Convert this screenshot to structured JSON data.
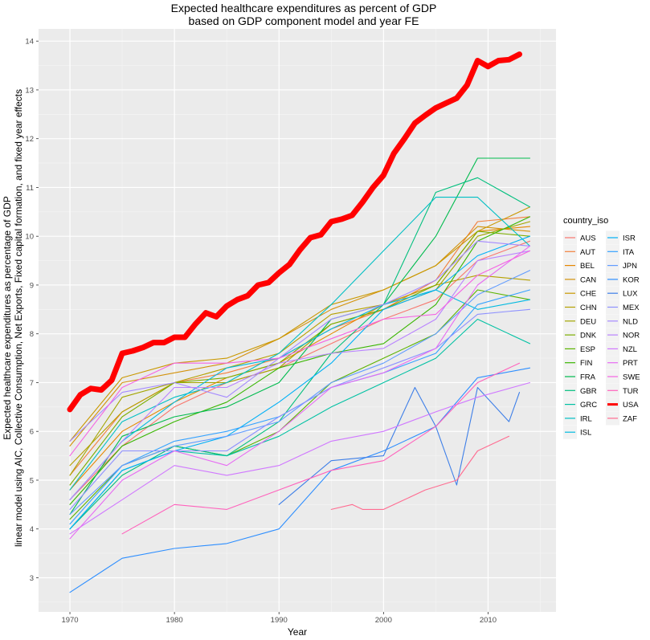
{
  "chart_data": {
    "type": "line",
    "title": [
      "Expected healthcare expenditures as percent of GDP",
      "based on GDP component model and year FE"
    ],
    "xlabel": "Year",
    "ylabel": "linear model using AIC, Collective Consumption, Net Exports, Fixed capital formation, and fixed year effects",
    "ylabel2": "Expected healthcare expenditures as percentage of GDP",
    "xlim": [
      1967,
      2016.5
    ],
    "ylim": [
      2.3,
      14.25
    ],
    "xticks": [
      1970,
      1980,
      1990,
      2000,
      2010
    ],
    "yticks": [
      3,
      4,
      5,
      6,
      7,
      8,
      9,
      10,
      11,
      12,
      13,
      14
    ],
    "legend_title": "country_iso",
    "legend_position": "right",
    "grid": true,
    "series": [
      {
        "name": "AUS",
        "color": "#F8766D",
        "x": [
          1970,
          1975,
          1980,
          1985,
          1990,
          1995,
          2000,
          2005,
          2009,
          2014
        ],
        "values": [
          4.6,
          5.7,
          6.5,
          7.0,
          7.3,
          7.8,
          8.3,
          8.7,
          9.5,
          9.9
        ]
      },
      {
        "name": "AUT",
        "color": "#F2803C",
        "x": [
          1970,
          1975,
          1980,
          1985,
          1990,
          1995,
          2000,
          2005,
          2009,
          2014
        ],
        "values": [
          5.1,
          6.4,
          7.0,
          7.2,
          7.5,
          8.1,
          8.5,
          9.1,
          10.3,
          10.4
        ]
      },
      {
        "name": "BEL",
        "color": "#E58700",
        "x": [
          1970,
          1975,
          1980,
          1985,
          1990,
          1995,
          2000,
          2005,
          2009,
          2014
        ],
        "values": [
          4.8,
          6.0,
          6.6,
          7.1,
          7.4,
          8.0,
          8.6,
          9.0,
          10.1,
          10.2
        ]
      },
      {
        "name": "CAN",
        "color": "#D3920B",
        "x": [
          1970,
          1975,
          1980,
          1985,
          1990,
          1995,
          2000,
          2005,
          2009,
          2014
        ],
        "values": [
          5.7,
          7.0,
          7.2,
          7.4,
          7.9,
          8.5,
          8.9,
          9.4,
          10.2,
          10.1
        ]
      },
      {
        "name": "CHE",
        "color": "#C99800",
        "x": [
          1970,
          1975,
          1980,
          1985,
          1990,
          1995,
          2000,
          2005,
          2009,
          2014
        ],
        "values": [
          5.8,
          7.1,
          7.4,
          7.5,
          7.9,
          8.6,
          8.9,
          9.4,
          10.1,
          10.6
        ]
      },
      {
        "name": "CHN",
        "color": "#B5A000",
        "x": [
          1970,
          1975,
          1980,
          1985,
          1990,
          1995,
          2000,
          2005,
          2009,
          2014
        ],
        "values": [
          5.3,
          6.4,
          7.0,
          7.3,
          7.6,
          8.4,
          8.6,
          9.0,
          9.2,
          9.1
        ]
      },
      {
        "name": "DEU",
        "color": "#A3A500",
        "x": [
          1970,
          1975,
          1980,
          1985,
          1990,
          1995,
          2000,
          2005,
          2009,
          2014
        ],
        "values": [
          5.1,
          6.7,
          7.0,
          7.0,
          7.3,
          8.2,
          8.5,
          8.9,
          10.0,
          10.3
        ]
      },
      {
        "name": "DNK",
        "color": "#7CAE00",
        "x": [
          1970,
          1975,
          1980,
          1985,
          1990,
          1995,
          2000,
          2005,
          2009,
          2014
        ],
        "values": [
          4.9,
          6.3,
          7.0,
          7.1,
          7.4,
          8.2,
          8.5,
          9.0,
          10.1,
          10.0
        ]
      },
      {
        "name": "ESP",
        "color": "#5BB300",
        "x": [
          1970,
          1975,
          1980,
          1985,
          1990,
          1995,
          2000,
          2005,
          2009,
          2014
        ],
        "values": [
          4.2,
          5.3,
          5.7,
          5.5,
          6.0,
          7.0,
          7.5,
          8.0,
          8.9,
          8.7
        ]
      },
      {
        "name": "FIN",
        "color": "#39B600",
        "x": [
          1970,
          1975,
          1980,
          1985,
          1990,
          1995,
          2000,
          2005,
          2009,
          2014
        ],
        "values": [
          4.5,
          5.7,
          6.2,
          6.6,
          7.3,
          7.6,
          7.8,
          8.6,
          9.9,
          10.4
        ]
      },
      {
        "name": "FRA",
        "color": "#00BB4E",
        "x": [
          1970,
          1975,
          1980,
          1985,
          1990,
          1995,
          2000,
          2005,
          2009,
          2014
        ],
        "values": [
          4.3,
          5.9,
          6.3,
          6.5,
          7.0,
          8.3,
          8.6,
          10.0,
          11.6,
          11.6
        ]
      },
      {
        "name": "GBR",
        "color": "#00BF7D",
        "x": [
          1970,
          1975,
          1980,
          1985,
          1990,
          1995,
          2000,
          2005,
          2009,
          2014
        ],
        "values": [
          4.0,
          5.1,
          5.7,
          5.5,
          6.2,
          7.6,
          8.6,
          10.9,
          11.2,
          10.6
        ]
      },
      {
        "name": "GRC",
        "color": "#00C1A3",
        "x": [
          1970,
          1975,
          1980,
          1985,
          1990,
          1995,
          2000,
          2005,
          2009,
          2014
        ],
        "values": [
          4.0,
          5.2,
          5.6,
          5.5,
          5.9,
          6.5,
          7.0,
          7.5,
          8.3,
          7.8
        ]
      },
      {
        "name": "IRL",
        "color": "#00BFC4",
        "x": [
          1970,
          1975,
          1980,
          1985,
          1990,
          1995,
          2000,
          2005,
          2009,
          2014
        ],
        "values": [
          4.8,
          6.2,
          6.7,
          7.0,
          7.6,
          8.6,
          9.7,
          10.8,
          10.8,
          9.8
        ]
      },
      {
        "name": "ISL",
        "color": "#00BAE0",
        "x": [
          1970,
          1975,
          1980,
          1985,
          1990,
          1995,
          2000,
          2005,
          2009,
          2014
        ],
        "values": [
          4.6,
          5.8,
          6.6,
          7.3,
          7.5,
          8.1,
          8.6,
          8.9,
          8.5,
          8.7
        ]
      },
      {
        "name": "ISR",
        "color": "#00B0F6",
        "x": [
          1970,
          1975,
          1980,
          1985,
          1990,
          1995,
          2000,
          2005,
          2009,
          2014
        ],
        "values": [
          4.0,
          5.2,
          5.6,
          5.9,
          6.6,
          7.4,
          8.5,
          8.9,
          9.6,
          10.0
        ]
      },
      {
        "name": "ITA",
        "color": "#35A2FF",
        "x": [
          1970,
          1975,
          1980,
          1985,
          1990,
          1995,
          2000,
          2005,
          2009,
          2014
        ],
        "values": [
          4.1,
          5.3,
          5.8,
          6.0,
          6.3,
          6.9,
          7.2,
          7.6,
          8.6,
          8.9
        ]
      },
      {
        "name": "JPN",
        "color": "#619CFF",
        "x": [
          1970,
          1975,
          1980,
          1985,
          1990,
          1995,
          2000,
          2005,
          2009,
          2014
        ],
        "values": [
          4.3,
          5.3,
          5.7,
          5.9,
          6.2,
          7.0,
          7.4,
          8.0,
          8.8,
          9.3
        ]
      },
      {
        "name": "KOR",
        "color": "#2D8EFF",
        "x": [
          1970,
          1975,
          1980,
          1985,
          1990,
          1995,
          2000,
          2005,
          2009,
          2014
        ],
        "values": [
          2.7,
          3.4,
          3.6,
          3.7,
          4.0,
          5.2,
          5.6,
          6.1,
          7.1,
          7.3
        ]
      },
      {
        "name": "LUX",
        "color": "#3E7FE8",
        "x": [
          1990,
          1995,
          2000,
          2003,
          2005,
          2007,
          2009,
          2012,
          2013
        ],
        "values": [
          4.5,
          5.4,
          5.5,
          6.9,
          6.1,
          4.9,
          6.9,
          6.2,
          6.8
        ]
      },
      {
        "name": "MEX",
        "color": "#8E91FF",
        "x": [
          1970,
          1975,
          1980,
          1985,
          1990,
          1995,
          2000,
          2005,
          2009,
          2014
        ],
        "values": [
          4.4,
          5.6,
          5.6,
          5.6,
          6.3,
          6.9,
          7.3,
          7.7,
          8.4,
          8.5
        ]
      },
      {
        "name": "NLD",
        "color": "#A58AFF",
        "x": [
          1970,
          1975,
          1980,
          1985,
          1990,
          1995,
          2000,
          2005,
          2009,
          2014
        ],
        "values": [
          5.8,
          6.8,
          7.0,
          6.7,
          7.5,
          8.3,
          8.6,
          9.1,
          9.9,
          9.8
        ]
      },
      {
        "name": "NOR",
        "color": "#B983FF",
        "x": [
          1970,
          1975,
          1980,
          1985,
          1990,
          1995,
          2000,
          2005,
          2009,
          2014
        ],
        "values": [
          4.6,
          5.8,
          6.9,
          6.9,
          7.4,
          7.6,
          7.7,
          8.3,
          9.5,
          9.7
        ]
      },
      {
        "name": "NZL",
        "color": "#D078FF",
        "x": [
          1970,
          1975,
          1980,
          1985,
          1990,
          1995,
          2000,
          2005,
          2009,
          2014
        ],
        "values": [
          3.9,
          4.6,
          5.3,
          5.1,
          5.3,
          5.8,
          6.0,
          6.4,
          6.7,
          7.0
        ]
      },
      {
        "name": "PRT",
        "color": "#E76BF3",
        "x": [
          1970,
          1975,
          1980,
          1985,
          1990,
          1995,
          2000,
          2005,
          2009,
          2014
        ],
        "values": [
          3.8,
          5.0,
          5.6,
          5.3,
          6.0,
          6.9,
          7.2,
          7.7,
          9.0,
          9.8
        ]
      },
      {
        "name": "SWE",
        "color": "#F564E3",
        "x": [
          1970,
          1975,
          1980,
          1985,
          1990,
          1995,
          2000,
          2005,
          2009,
          2014
        ],
        "values": [
          5.5,
          6.9,
          7.4,
          7.4,
          7.5,
          7.9,
          8.3,
          8.4,
          9.2,
          9.7
        ]
      },
      {
        "name": "TUR",
        "color": "#FF62BC",
        "x": [
          1975,
          1980,
          1985,
          1990,
          1995,
          2000,
          2005,
          2009,
          2013
        ],
        "values": [
          3.9,
          4.5,
          4.4,
          4.8,
          5.2,
          5.4,
          6.1,
          7.0,
          7.4
        ]
      },
      {
        "name": "USA",
        "color": "#FF0000",
        "width": 7,
        "x": [
          1970,
          1971,
          1972,
          1973,
          1974,
          1975,
          1976,
          1977,
          1978,
          1979,
          1980,
          1981,
          1982,
          1983,
          1984,
          1985,
          1986,
          1987,
          1988,
          1989,
          1990,
          1991,
          1992,
          1993,
          1994,
          1995,
          1996,
          1997,
          1998,
          1999,
          2000,
          2001,
          2002,
          2003,
          2004,
          2005,
          2006,
          2007,
          2008,
          2009,
          2010,
          2011,
          2012,
          2013
        ],
        "values": [
          6.45,
          6.75,
          6.88,
          6.85,
          7.05,
          7.6,
          7.65,
          7.72,
          7.82,
          7.82,
          7.93,
          7.93,
          8.2,
          8.43,
          8.35,
          8.57,
          8.7,
          8.78,
          9.0,
          9.05,
          9.25,
          9.42,
          9.72,
          9.97,
          10.03,
          10.3,
          10.35,
          10.43,
          10.7,
          11.0,
          11.25,
          11.7,
          12.0,
          12.32,
          12.48,
          12.63,
          12.73,
          12.83,
          13.1,
          13.6,
          13.48,
          13.6,
          13.62,
          13.73
        ]
      },
      {
        "name": "ZAF",
        "color": "#FF6C91",
        "x": [
          1995,
          1997,
          1998,
          2000,
          2002,
          2004,
          2007,
          2009,
          2012
        ],
        "values": [
          4.4,
          4.5,
          4.4,
          4.4,
          4.6,
          4.8,
          5.0,
          5.6,
          5.9
        ]
      }
    ]
  }
}
